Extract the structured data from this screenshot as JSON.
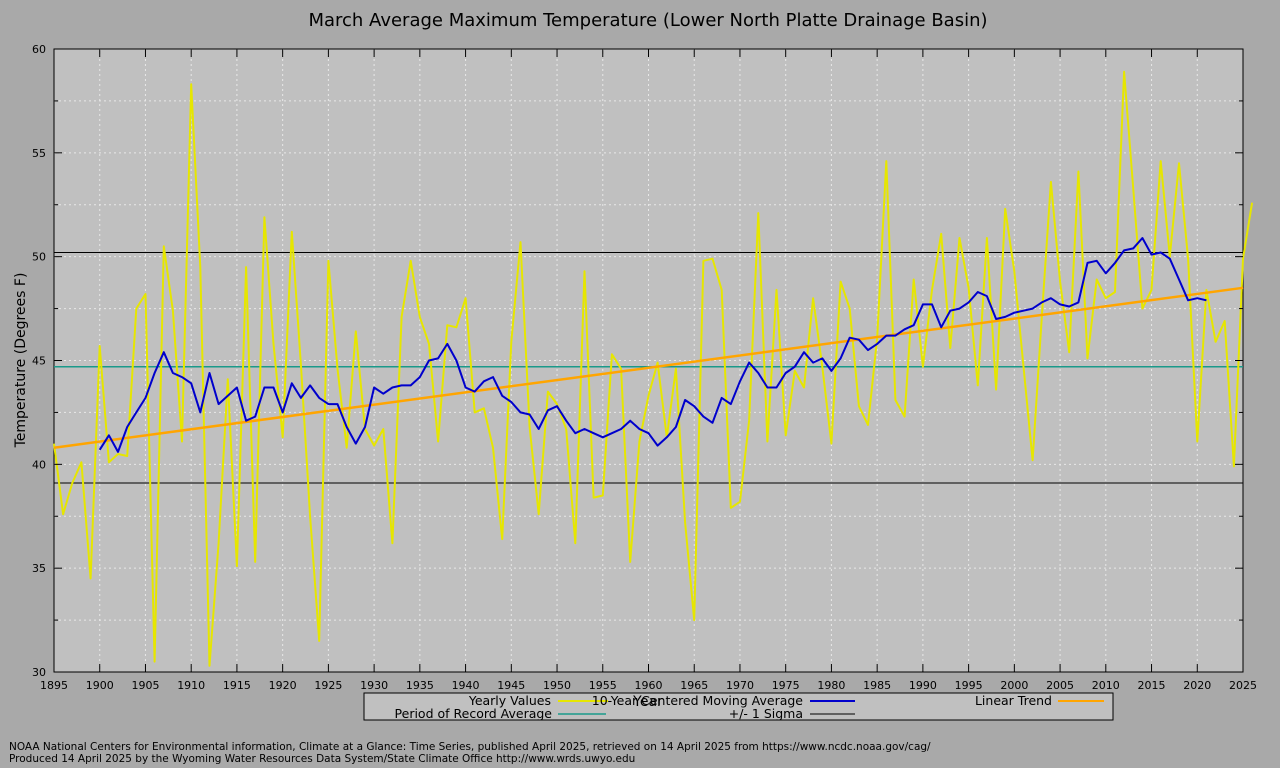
{
  "chart_data": {
    "type": "line",
    "title": "March Average Maximum Temperature (Lower North Platte Drainage Basin)",
    "xlabel": "Year",
    "ylabel": "Temperature (Degrees F)",
    "xlim": [
      1895,
      2025
    ],
    "ylim": [
      30,
      60
    ],
    "x_ticks": [
      1895,
      1900,
      1905,
      1910,
      1915,
      1920,
      1925,
      1930,
      1935,
      1940,
      1945,
      1950,
      1955,
      1960,
      1965,
      1970,
      1975,
      1980,
      1985,
      1990,
      1995,
      2000,
      2005,
      2010,
      2015,
      2020,
      2025
    ],
    "y_ticks": [
      30,
      35,
      40,
      45,
      50,
      55,
      60
    ],
    "grid": true,
    "legend_position": "bottom-center",
    "colors": {
      "yearly": "#e6e600",
      "moving_avg": "#0000cc",
      "trend": "#ffa500",
      "por_avg": "#1a9a8a",
      "sigma": "#000000",
      "plot_bg": "#c0c0c0",
      "page_bg": "#a9a9a9"
    },
    "series": [
      {
        "name": "Yearly Values",
        "x_start": 1895,
        "values": [
          41.0,
          37.6,
          39.1,
          40.1,
          34.5,
          45.7,
          40.1,
          40.5,
          40.4,
          47.5,
          48.2,
          30.5,
          50.5,
          47.4,
          41.1,
          58.3,
          49.5,
          30.3,
          36.2,
          44.1,
          35.1,
          49.5,
          35.3,
          51.9,
          45.8,
          41.3,
          51.2,
          44.8,
          37.5,
          31.5,
          49.8,
          44.6,
          40.8,
          46.4,
          41.7,
          40.9,
          41.7,
          36.2,
          47.1,
          49.8,
          47.1,
          45.8,
          41.1,
          46.7,
          46.6,
          48.0,
          42.5,
          42.7,
          40.8,
          36.4,
          45.9,
          50.7,
          41.8,
          37.6,
          43.5,
          42.9,
          41.7,
          36.2,
          49.3,
          38.4,
          38.5,
          45.3,
          44.6,
          35.3,
          41.1,
          43.3,
          44.9,
          41.3,
          44.6,
          37.2,
          32.5,
          49.8,
          49.9,
          48.4,
          37.9,
          38.2,
          42.1,
          52.1,
          41.1,
          48.4,
          41.4,
          44.5,
          43.7,
          48.0,
          44.7,
          41.0,
          48.8,
          47.5,
          42.8,
          41.9,
          46.1,
          54.6,
          43.1,
          42.3,
          48.9,
          44.7,
          48.4,
          51.1,
          45.6,
          50.9,
          48.5,
          43.8,
          50.9,
          43.6,
          52.3,
          49.3,
          44.7,
          40.2,
          47.1,
          53.6,
          48.8,
          45.4,
          54.1,
          45.1,
          48.9,
          48.0,
          48.3,
          58.9,
          53.3,
          47.5,
          48.4,
          54.6,
          50.0,
          54.5,
          49.9,
          41.1,
          48.4,
          45.9,
          46.9,
          39.9,
          49.9,
          52.6
        ]
      },
      {
        "name": "10-Year Centered Moving Average",
        "x_start": 1900,
        "values": [
          40.7,
          41.4,
          40.6,
          41.8,
          42.5,
          43.2,
          44.4,
          45.4,
          44.4,
          44.2,
          43.9,
          42.5,
          44.4,
          42.9,
          43.3,
          43.7,
          42.1,
          42.3,
          43.7,
          43.7,
          42.5,
          43.9,
          43.2,
          43.8,
          43.2,
          42.9,
          42.9,
          41.8,
          41.0,
          41.8,
          43.7,
          43.4,
          43.7,
          43.8,
          43.8,
          44.2,
          45.0,
          45.1,
          45.8,
          45.0,
          43.7,
          43.5,
          44.0,
          44.2,
          43.3,
          43.0,
          42.5,
          42.4,
          41.7,
          42.6,
          42.8,
          42.1,
          41.5,
          41.7,
          41.5,
          41.3,
          41.5,
          41.7,
          42.1,
          41.7,
          41.5,
          40.9,
          41.3,
          41.8,
          43.1,
          42.8,
          42.3,
          42.0,
          43.2,
          42.9,
          44.0,
          44.9,
          44.4,
          43.7,
          43.7,
          44.4,
          44.7,
          45.4,
          44.9,
          45.1,
          44.5,
          45.1,
          46.1,
          46.0,
          45.5,
          45.8,
          46.2,
          46.2,
          46.5,
          46.7,
          47.7,
          47.7,
          46.6,
          47.4,
          47.5,
          47.8,
          48.3,
          48.1,
          47.0,
          47.1,
          47.3,
          47.4,
          47.5,
          47.8,
          48.0,
          47.7,
          47.6,
          47.8,
          49.7,
          49.8,
          49.2,
          49.7,
          50.3,
          50.4,
          50.9,
          50.1,
          50.2,
          49.9,
          48.9,
          47.9,
          48.0,
          47.9
        ]
      },
      {
        "name": "Linear Trend",
        "x": [
          1895,
          2025
        ],
        "y": [
          40.8,
          48.5
        ]
      },
      {
        "name": "Period of Record Average",
        "value": 44.7
      },
      {
        "name": "+/- 1 Sigma",
        "values": [
          50.2,
          39.1
        ]
      }
    ]
  },
  "legend": {
    "yearly": "Yearly Values",
    "moving_avg": "10-Year Centered Moving Average",
    "trend": "Linear Trend",
    "por_avg": "Period of Record Average",
    "sigma": "+/- 1 Sigma"
  },
  "footer": {
    "line1": "NOAA National Centers for Environmental information, Climate at a Glance: Time Series, published April 2025, retrieved on 14 April 2025 from https://www.ncdc.noaa.gov/cag/",
    "line2": "Produced 14 April 2025 by the Wyoming Water Resources Data System/State Climate Office http://www.wrds.uwyo.edu"
  }
}
